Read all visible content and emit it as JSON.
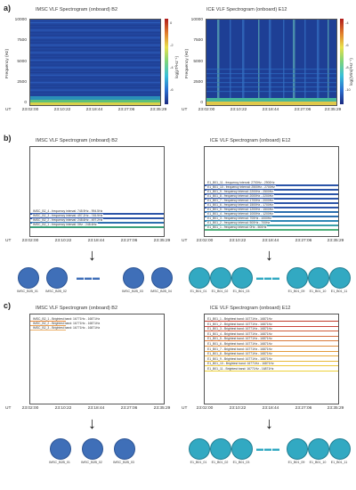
{
  "panels": {
    "a": "a)",
    "b": "b)",
    "c": "c)"
  },
  "left_title": "IMSC VLF Spectrogram (onboard) B2",
  "right_title": "ICE VLF Spectrogram (onboard) E12",
  "y_axis": {
    "label": "Frequency (Hz)",
    "ticks": [
      "10000",
      "7500",
      "5000",
      "2500",
      "0"
    ]
  },
  "colorbar": {
    "left_label": "log(pT²Hz⁻¹)",
    "right_label": "log((V/m)²Hz⁻¹)",
    "left_ticks": [
      "0",
      "-2",
      "-4",
      "-6"
    ],
    "right_ticks": [
      "-4",
      "-6",
      "-8",
      "-10"
    ]
  },
  "x_axis": {
    "ut": "UT",
    "ticks": [
      "23:02:00",
      "23:10:22",
      "23:18:44",
      "23:27:06",
      "23:35:29"
    ]
  },
  "b_left_lines": [
    {
      "label": "IMSC_B2_4 - frequency interval: 745.9Hz - 994.5Hz",
      "color": "#2c55a8"
    },
    {
      "label": "IMSC_B2_3 - frequency interval: 497.2Hz - 745.9Hz",
      "color": "#2c55a8"
    },
    {
      "label": "IMSC_B2_2 - frequency interval: 248.6Hz - 497.2Hz",
      "color": "#2c6fae"
    },
    {
      "label": "IMSC_B2_1 - frequency interval: 0Hz - 248.6Hz",
      "color": "#3aa07a"
    }
  ],
  "b_right_lines": [
    {
      "label": "E1_B01_11 - frequency interval: 2700Hz - 2900Hz",
      "color": "#2c55a8"
    },
    {
      "label": "E1_B01_10 - frequency interval: 2500Hz - 2700Hz",
      "color": "#2c55a8"
    },
    {
      "label": "E1_B01_9 - frequency interval: 2200Hz - 2500Hz",
      "color": "#2c55a8"
    },
    {
      "label": "E1_B01_8 - frequency interval: 2000Hz - 2200Hz",
      "color": "#2c55a8"
    },
    {
      "label": "E1_B01_7 - frequency interval: 1700Hz - 2000Hz",
      "color": "#2c55a8"
    },
    {
      "label": "E1_B01_6 - frequency interval: 1500Hz - 1700Hz",
      "color": "#2c55a8"
    },
    {
      "label": "E1_B01_5 - frequency interval: 1200Hz - 1500Hz",
      "color": "#2c6fae"
    },
    {
      "label": "E1_B01_4 - frequency interval: 1000Hz - 1200Hz",
      "color": "#2c6fae"
    },
    {
      "label": "E1_B01_3 - frequency interval: 700Hz - 1000Hz",
      "color": "#2f88b6"
    },
    {
      "label": "E1_B01_2 - frequency interval: 500Hz - 700Hz",
      "color": "#3a9fa8"
    },
    {
      "label": "E1_B01_1 - frequency interval: 0Hz - 500Hz",
      "color": "#4fb07a"
    }
  ],
  "c_left_lines": [
    {
      "label": "IMSC_B2_1 - Brightest band: 16771Hz - 16871Hz",
      "color": "#e88a3a"
    },
    {
      "label": "IMSC_B2_2 - Brightest band: 16771Hz - 16871Hz",
      "color": "#e89a4a"
    },
    {
      "label": "IMSC_B2_3 - Brightest band: 16771Hz - 16871Hz",
      "color": "#ecb06a"
    }
  ],
  "c_right_lines": [
    {
      "label": "E1_B01_1 - Brightest band: 16771Hz - 16871Hz",
      "color": "#c0392b"
    },
    {
      "label": "E1_B01_2 - Brightest band: 16771Hz - 16871Hz",
      "color": "#c8443a"
    },
    {
      "label": "E1_B01_3 - Brightest band: 16771Hz - 16871Hz",
      "color": "#cf5a3a"
    },
    {
      "label": "E1_B01_4 - Brightest band: 16771Hz - 16871Hz",
      "color": "#d46a3a"
    },
    {
      "label": "E1_B01_5 - Brightest band: 16771Hz - 16871Hz",
      "color": "#d97a3a"
    },
    {
      "label": "E1_B01_6 - Brightest band: 16771Hz - 16871Hz",
      "color": "#de8a3a"
    },
    {
      "label": "E1_B01_7 - Brightest band: 16771Hz - 16871Hz",
      "color": "#e39a3a"
    },
    {
      "label": "E1_B01_8 - Brightest band: 16771Hz - 16871Hz",
      "color": "#e6aa3a"
    },
    {
      "label": "E1_B01_9 - Brightest band: 16771Hz - 16871Hz",
      "color": "#e9ba3a"
    },
    {
      "label": "E1_B01_10 - Brightest band: 16771Hz - 16871Hz",
      "color": "#ecc83a"
    },
    {
      "label": "E1_B01_11 - Brightest band: 16771Hz - 16871Hz",
      "color": "#eed23a"
    }
  ],
  "b_left_nodes": [
    "IMSC_B2B_01",
    "IMSC_B2B_02",
    "IMSC_B2B_03",
    "IMSC_B2B_04"
  ],
  "b_right_nodes": [
    "E1_B01_01",
    "E1_B01_02",
    "E1_B01_03",
    "E1_B01_09",
    "E1_B01_10",
    "E1_B01_11"
  ],
  "c_left_nodes": [
    "IMSC_B2B_01",
    "IMSC_B2B_02",
    "IMSC_B2B_03"
  ],
  "c_right_nodes": [
    "E1_B01_01",
    "E1_B01_02",
    "E1_B01_03",
    "E1_B01_09",
    "E1_B01_10",
    "E1_B01_11"
  ],
  "colors": {
    "node_left": "#3f6fb8",
    "node_right": "#32a9c2"
  }
}
